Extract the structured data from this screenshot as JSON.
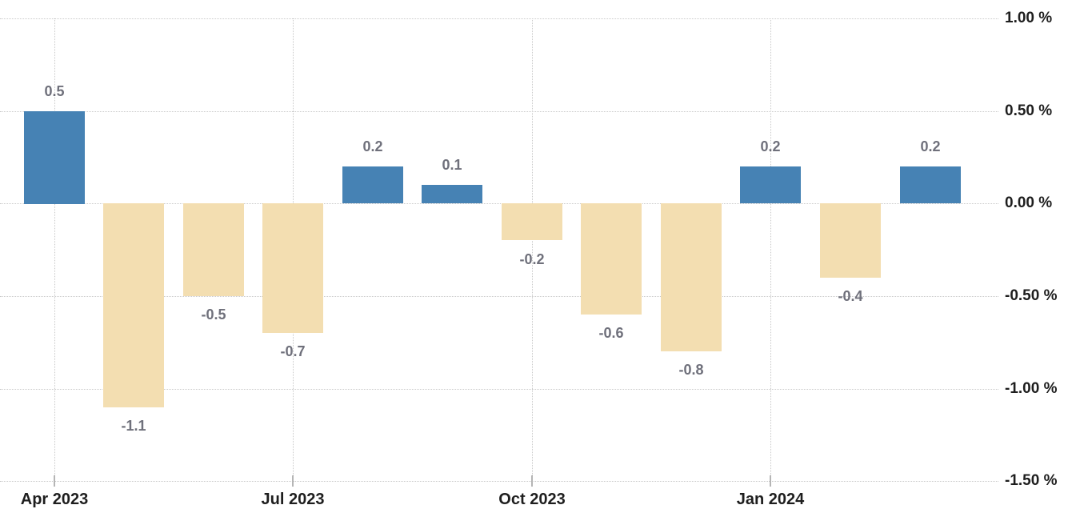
{
  "chart_data": {
    "type": "bar",
    "title": "",
    "unit": "%",
    "values": [
      0.5,
      -1.1,
      -0.5,
      -0.7,
      0.2,
      0.1,
      -0.2,
      -0.6,
      -0.8,
      0.2,
      -0.4,
      0.2
    ],
    "bar_value_labels": [
      "0.5",
      "-1.1",
      "-0.5",
      "-0.7",
      "0.2",
      "0.1",
      "-0.2",
      "-0.6",
      "-0.8",
      "0.2",
      "-0.4",
      "0.2"
    ],
    "x_tick_labels": [
      "Apr 2023",
      "Jul 2023",
      "Oct 2023",
      "Jan 2024"
    ],
    "x_tick_bar_indices": [
      0,
      3,
      6,
      9
    ],
    "y_tick_labels": [
      "1.00 %",
      "0.50 %",
      "0.00 %",
      "-0.50 %",
      "-1.00 %",
      "-1.50 %"
    ],
    "y_tick_values": [
      1.0,
      0.5,
      0.0,
      -0.5,
      -1.0,
      -1.5
    ],
    "ylim": [
      -1.5,
      1.0
    ],
    "grid": "dotted",
    "legend_position": "none",
    "y_axis_position": "right",
    "colors": {
      "positive_bar": "#4682b4",
      "negative_bar": "#f3deb1",
      "gridline": "#c9c9c9",
      "tick": "#b5b5b5",
      "value_label": "#6f707b",
      "axis_label": "#1e1e1e",
      "background": "#ffffff"
    }
  }
}
